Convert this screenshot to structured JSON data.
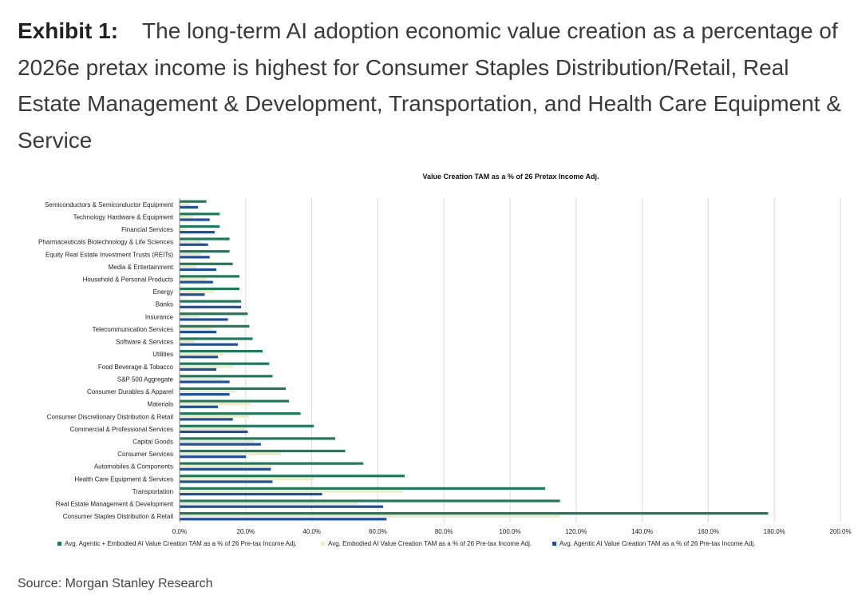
{
  "exhibit": {
    "label": "Exhibit 1:",
    "text": "The long-term AI adoption economic value creation as a percentage of 2026e pretax income is highest for Consumer Staples Distribution/Retail, Real Estate Management & Development, Transportation, and Health Care Equipment & Service"
  },
  "source": "Source: Morgan Stanley Research",
  "colors": {
    "combined": "#1e7a5a",
    "embodied": "#ecebc9",
    "agentic": "#1d4fa0",
    "grid": "#d9d9d9",
    "axis": "#888888"
  },
  "chart_data": {
    "type": "bar",
    "orientation": "horizontal",
    "title": "Value Creation TAM as a % of 26 Pretax Income Adj.",
    "xlabel": "",
    "ylabel": "",
    "xlim": [
      0,
      200
    ],
    "x_ticks": [
      "0.0%",
      "20.0%",
      "40.0%",
      "60.0%",
      "80.0%",
      "100.0%",
      "120.0%",
      "140.0%",
      "160.0%",
      "180.0%",
      "200.0%"
    ],
    "grid": true,
    "legend_position": "bottom",
    "categories": [
      "Semiconductors & Semiconductor Equipment",
      "Technology Hardware & Equipment",
      "Financial Services",
      "Pharmaceuticals Biotechnology & Life Sciences",
      "Equity Real Estate Investment Trusts (REITs)",
      "Media & Entertainment",
      "Household & Personal Products",
      "Energy",
      "Banks",
      "Insurance",
      "Telecommunication Services",
      "Software & Services",
      "Utilities",
      "Food Beverage & Tobacco",
      "S&P 500 Aggregate",
      "Consumer Durables & Apparel",
      "Materials",
      "Consumer Discretionary Distribution & Retail",
      "Commercial & Professional Services",
      "Capital Goods",
      "Consumer Services",
      "Automobiles & Components",
      "Health Care Equipment & Services",
      "Transportation",
      "Real Estate Management & Development",
      "Consumer Staples Distribution & Retail"
    ],
    "series": [
      {
        "name": "Avg. Agentic + Embodied AI Value Creation TAM as a % of 26 Pre-tax Income Adj.",
        "values": [
          8,
          12,
          12,
          15,
          15,
          16,
          18,
          18,
          18.5,
          20.5,
          21,
          22,
          25,
          27,
          28,
          32,
          33,
          36.5,
          40.5,
          47,
          50,
          55.5,
          68,
          110.5,
          115,
          178
        ]
      },
      {
        "name": "Avg. Embodied AI Value Creation TAM as a % of 26 Pre-tax Income Adj.",
        "values": [
          3,
          4,
          2,
          6.5,
          6.5,
          5,
          8,
          10.5,
          0.5,
          6,
          10,
          4.5,
          13,
          16,
          13,
          17,
          21.5,
          21,
          20,
          22.5,
          30.5,
          28,
          40.5,
          67.5,
          54,
          115
        ]
      },
      {
        "name": "Avg. Agentic AI Value Creation TAM as a % of 26 Pre-tax Income Adj.",
        "values": [
          5.5,
          9,
          10.5,
          8.5,
          9,
          11,
          10,
          7.5,
          18.5,
          14.5,
          11,
          17.5,
          11.5,
          11,
          15,
          15,
          11.5,
          16,
          20.5,
          24.5,
          20,
          27.5,
          28,
          43,
          61.5,
          62.5
        ]
      }
    ]
  }
}
